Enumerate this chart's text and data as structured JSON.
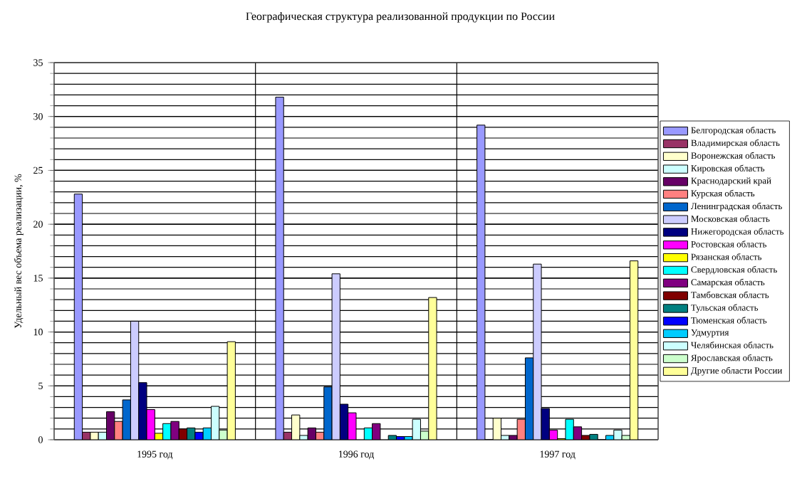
{
  "chart_data": {
    "type": "bar",
    "title": "Географическая структура реализованной продукции по России",
    "ylabel": "Удельный вес объема реализации, %",
    "categories": [
      "1995 год",
      "1996 год",
      "1997 год"
    ],
    "ylim": [
      0,
      35
    ],
    "yticks": [
      0,
      5,
      10,
      15,
      20,
      25,
      30,
      35
    ],
    "grid": true,
    "legend": "right",
    "series": [
      {
        "name": "Белгородская область",
        "color": "#9999ff",
        "values": [
          22.8,
          31.8,
          29.2
        ]
      },
      {
        "name": "Владимирская область",
        "color": "#993366",
        "values": [
          0.7,
          0.7,
          0
        ]
      },
      {
        "name": "Воронежская область",
        "color": "#ffffcc",
        "values": [
          0.7,
          2.3,
          2.0
        ]
      },
      {
        "name": "Кировская область",
        "color": "#ccffff",
        "values": [
          0.7,
          0.4,
          0.4
        ]
      },
      {
        "name": "Краснодарский край",
        "color": "#660066",
        "values": [
          2.6,
          1.1,
          0.4
        ]
      },
      {
        "name": "Курская область",
        "color": "#ff8080",
        "values": [
          1.7,
          0.7,
          1.9
        ]
      },
      {
        "name": "Ленинградская область",
        "color": "#0066cc",
        "values": [
          3.7,
          4.9,
          7.6
        ]
      },
      {
        "name": "Московская область",
        "color": "#ccccff",
        "values": [
          11.0,
          15.4,
          16.3
        ]
      },
      {
        "name": "Нижегородская область",
        "color": "#000080",
        "values": [
          5.3,
          3.3,
          2.9
        ]
      },
      {
        "name": "Ростовская область",
        "color": "#ff00ff",
        "values": [
          2.8,
          2.5,
          0.9
        ]
      },
      {
        "name": "Рязанская область",
        "color": "#ffff00",
        "values": [
          0.6,
          null,
          0.1
        ]
      },
      {
        "name": "Свердловская область",
        "color": "#00ffff",
        "values": [
          1.5,
          1.1,
          1.9
        ]
      },
      {
        "name": "Самарская область",
        "color": "#800080",
        "values": [
          1.7,
          1.5,
          1.2
        ]
      },
      {
        "name": "Тамбовская область",
        "color": "#800000",
        "values": [
          1.0,
          null,
          0.4
        ]
      },
      {
        "name": "Тульская область",
        "color": "#008080",
        "values": [
          1.1,
          0.4,
          0.5
        ]
      },
      {
        "name": "Тюменская область",
        "color": "#0000ff",
        "values": [
          0.7,
          0.3,
          0
        ]
      },
      {
        "name": "Удмуртия",
        "color": "#00ccff",
        "values": [
          1.1,
          0.3,
          0.4
        ]
      },
      {
        "name": "Челябинская область",
        "color": "#ccffff",
        "values": [
          3.1,
          1.9,
          0.9
        ]
      },
      {
        "name": "Ярославская область",
        "color": "#ccffcc",
        "values": [
          0.9,
          0.8,
          0.4
        ]
      },
      {
        "name": "Другие области России",
        "color": "#ffff99",
        "values": [
          9.1,
          13.2,
          16.6
        ]
      }
    ]
  }
}
